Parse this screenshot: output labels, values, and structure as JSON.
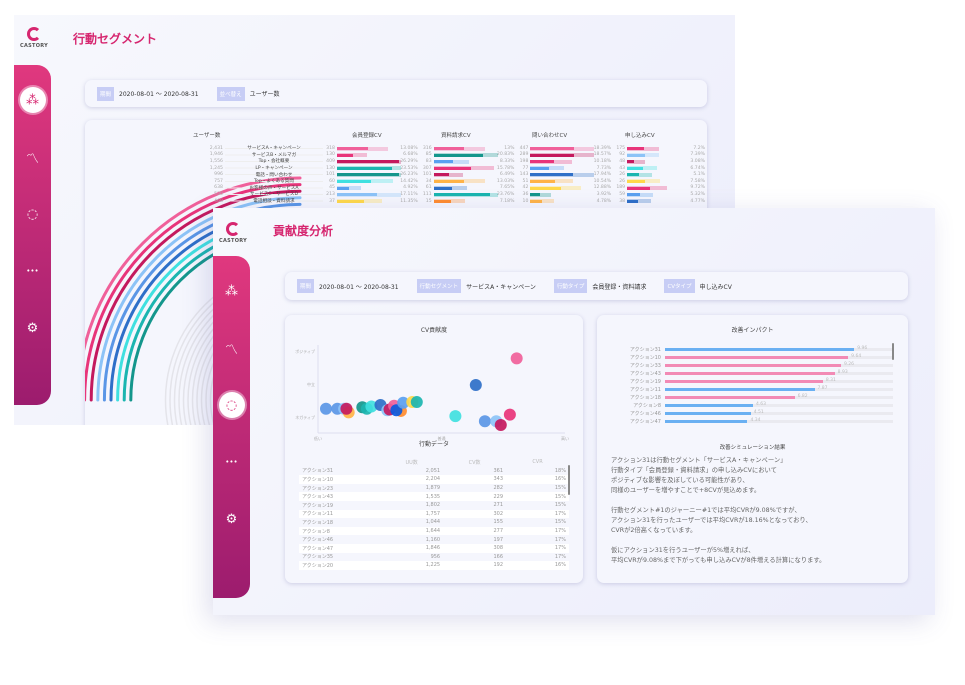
{
  "back": {
    "logo": "CASTORY",
    "title": "行動セグメント",
    "filters": [
      {
        "tag": "期間",
        "value": "2020-08-01 〜 2020-08-31"
      },
      {
        "tag": "並べ替え",
        "value": "ユーザー数"
      }
    ],
    "headers": {
      "users": "ユーザー数",
      "cv": [
        "会員登録CV",
        "資料請求CV",
        "問い合わせCV",
        "申し込みCV"
      ]
    },
    "rows": [
      {
        "name": "サービスA・キャンペーン",
        "users": "2,431",
        "color": "#f0609a",
        "cv": [
          {
            "n": "318",
            "p": "13.08%",
            "v": 13.08,
            "c": "#f0609a"
          },
          {
            "n": "316",
            "p": "13%",
            "v": 13,
            "c": "#f0609a"
          },
          {
            "n": "447",
            "p": "18.39%",
            "v": 18.39,
            "c": "#f0609a"
          },
          {
            "n": "175",
            "p": "7.2%",
            "v": 7.2,
            "c": "#e8347a"
          }
        ]
      },
      {
        "name": "サービスB・メルマガ",
        "users": "1,946",
        "color": "#e8347a",
        "cv": [
          {
            "n": "130",
            "p": "6.68%",
            "v": 6.68,
            "c": "#e8347a"
          },
          {
            "n": "85",
            "p": "20.83%",
            "v": 20.83,
            "c": "#14968c"
          },
          {
            "n": "289",
            "p": "18.57%",
            "v": 18.57,
            "c": "#c4195e"
          },
          {
            "n": "92",
            "p": "7.39%",
            "v": 7.39,
            "c": "#8cc3f7"
          }
        ]
      },
      {
        "name": "Top・会社概要",
        "users": "1,556",
        "color": "#c4195e",
        "cv": [
          {
            "n": "409",
            "p": "26.29%",
            "v": 26.29,
            "c": "#c4195e"
          },
          {
            "n": "83",
            "p": "8.33%",
            "v": 8.33,
            "c": "#5aa0f0"
          },
          {
            "n": "198",
            "p": "10.18%",
            "v": 10.18,
            "c": "#e8347a"
          },
          {
            "n": "48",
            "p": "3.08%",
            "v": 3.08,
            "c": "#c4195e"
          }
        ]
      },
      {
        "name": "LP・キャンペーン",
        "users": "1,245",
        "color": "#8cc3f7",
        "cv": [
          {
            "n": "130",
            "p": "23.53%",
            "v": 23.53,
            "c": "#1bb5b0"
          },
          {
            "n": "307",
            "p": "15.78%",
            "v": 15.78,
            "c": "#e8347a"
          },
          {
            "n": "77",
            "p": "7.73%",
            "v": 7.73,
            "c": "#5aa0f0"
          },
          {
            "n": "43",
            "p": "6.74%",
            "v": 6.74,
            "c": "#40e0e0"
          }
        ]
      },
      {
        "name": "電話・問い合わせ",
        "users": "996",
        "color": "#5a96e6",
        "cv": [
          {
            "n": "101",
            "p": "26.23%",
            "v": 26.23,
            "c": "#14968c"
          },
          {
            "n": "101",
            "p": "6.49%",
            "v": 6.49,
            "c": "#c4195e"
          },
          {
            "n": "143",
            "p": "17.94%",
            "v": 17.94,
            "c": "#2e6fc8"
          },
          {
            "n": "26",
            "p": "5.1%",
            "v": 5.1,
            "c": "#1bb5b0"
          }
        ]
      },
      {
        "name": "Top・よくある質問",
        "users": "757",
        "color": "#2e6fc8",
        "cv": [
          {
            "n": "60",
            "p": "14.42%",
            "v": 14.42,
            "c": "#40e0e0"
          },
          {
            "n": "34",
            "p": "13.03%",
            "v": 13.03,
            "c": "#ffb347"
          },
          {
            "n": "51",
            "p": "10.54%",
            "v": 10.54,
            "c": "#ffb347"
          },
          {
            "n": "26",
            "p": "7.58%",
            "v": 7.58,
            "c": "#ffd84a"
          }
        ]
      },
      {
        "name": "お客様の声・サービスA",
        "users": "638",
        "color": "#40e0e0",
        "cv": [
          {
            "n": "45",
            "p": "4.92%",
            "v": 4.92,
            "c": "#5aa0f0"
          },
          {
            "n": "61",
            "p": "7.65%",
            "v": 7.65,
            "c": "#2e6fc8"
          },
          {
            "n": "42",
            "p": "12.88%",
            "v": 12.88,
            "c": "#ffd84a"
          },
          {
            "n": "189",
            "p": "9.72%",
            "v": 9.72,
            "c": "#e8347a"
          }
        ]
      },
      {
        "name": "サービスC・サービスD",
        "users": "530",
        "color": "#1bb5b0",
        "cv": [
          {
            "n": "213",
            "p": "17.11%",
            "v": 17.11,
            "c": "#8cc3f7"
          },
          {
            "n": "111",
            "p": "23.76%",
            "v": 23.76,
            "c": "#1bb5b0"
          },
          {
            "n": "36",
            "p": "3.92%",
            "v": 3.92,
            "c": "#14968c"
          },
          {
            "n": "59",
            "p": "5.32%",
            "v": 5.32,
            "c": "#5aa0f0"
          }
        ]
      },
      {
        "name": "電話相談・資料請求",
        "users": "468",
        "color": "#14968c",
        "cv": [
          {
            "n": "37",
            "p": "11.35%",
            "v": 11.35,
            "c": "#ffd84a"
          },
          {
            "n": "15",
            "p": "7.18%",
            "v": 7.18,
            "c": "#ff8c30"
          },
          {
            "n": "10",
            "p": "4.78%",
            "v": 4.78,
            "c": "#ffb347"
          },
          {
            "n": "38",
            "p": "4.77%",
            "v": 4.77,
            "c": "#2e6fc8"
          }
        ]
      }
    ]
  },
  "front": {
    "logo": "CASTORY",
    "title": "貢献度分析",
    "filters": [
      {
        "tag": "期間",
        "value": "2020-08-01 〜 2020-08-31"
      },
      {
        "tag": "行動セグメント",
        "value": "サービスA・キャンペーン"
      },
      {
        "tag": "行動タイプ",
        "value": "会員登録・資料請求"
      },
      {
        "tag": "CVタイプ",
        "value": "申し込みCV"
      }
    ],
    "sidebar_active": 2,
    "chart_data": {
      "type": "scatter",
      "title": "CV貢献度",
      "yticks": [
        "ポジティブ",
        "中立",
        "ネガティブ"
      ],
      "xticks": [
        "低い",
        "普通",
        "高い"
      ],
      "xlim": [
        0,
        100
      ],
      "ylim": [
        0,
        100
      ],
      "points": [
        {
          "x": 0,
          "y": 22,
          "c": "#5a96e6"
        },
        {
          "x": 5,
          "y": 22,
          "c": "#5a96e6"
        },
        {
          "x": 8,
          "y": 22,
          "c": "#8cc3f7"
        },
        {
          "x": 10,
          "y": 17,
          "c": "#ffb347"
        },
        {
          "x": 9,
          "y": 22,
          "c": "#c4195e"
        },
        {
          "x": 16,
          "y": 24,
          "c": "#14968c"
        },
        {
          "x": 18,
          "y": 22,
          "c": "#1bb5b0"
        },
        {
          "x": 20,
          "y": 25,
          "c": "#40e0e0"
        },
        {
          "x": 24,
          "y": 27,
          "c": "#2e6fc8"
        },
        {
          "x": 27,
          "y": 20,
          "c": "#8cc3f7"
        },
        {
          "x": 28,
          "y": 21,
          "c": "#c4195e"
        },
        {
          "x": 30,
          "y": 26,
          "c": "#f0609a"
        },
        {
          "x": 33,
          "y": 19,
          "c": "#ff8c30"
        },
        {
          "x": 31,
          "y": 20,
          "c": "#0a5ae0"
        },
        {
          "x": 34,
          "y": 30,
          "c": "#5aa0f0"
        },
        {
          "x": 38,
          "y": 31,
          "c": "#ffd84a"
        },
        {
          "x": 40,
          "y": 31,
          "c": "#1bb5b0"
        },
        {
          "x": 57,
          "y": 12,
          "c": "#40e0e0"
        },
        {
          "x": 66,
          "y": 54,
          "c": "#2e6fc8"
        },
        {
          "x": 70,
          "y": 5,
          "c": "#5a96e6"
        },
        {
          "x": 75,
          "y": 5,
          "c": "#8cc3f7"
        },
        {
          "x": 77,
          "y": 0,
          "c": "#c4195e"
        },
        {
          "x": 81,
          "y": 14,
          "c": "#e8347a"
        },
        {
          "x": 84,
          "y": 90,
          "c": "#f0609a"
        }
      ]
    },
    "table": {
      "title": "行動データ",
      "headers": [
        "",
        "UU数",
        "CV数",
        "CVR"
      ],
      "rows": [
        [
          "アクション31",
          "2,051",
          "361",
          "18%"
        ],
        [
          "アクション10",
          "2,204",
          "343",
          "16%"
        ],
        [
          "アクション23",
          "1,879",
          "282",
          "15%"
        ],
        [
          "アクション43",
          "1,535",
          "229",
          "15%"
        ],
        [
          "アクション19",
          "1,802",
          "271",
          "15%"
        ],
        [
          "アクション11",
          "1,757",
          "302",
          "17%"
        ],
        [
          "アクション18",
          "1,044",
          "155",
          "15%"
        ],
        [
          "アクション8",
          "1,644",
          "277",
          "17%"
        ],
        [
          "アクション46",
          "1,160",
          "197",
          "17%"
        ],
        [
          "アクション47",
          "1,846",
          "308",
          "17%"
        ],
        [
          "アクション35",
          "956",
          "166",
          "17%"
        ],
        [
          "アクション20",
          "1,225",
          "192",
          "16%"
        ]
      ]
    },
    "impact": {
      "title": "改善インパクト",
      "max": 12,
      "rows": [
        {
          "label": "アクション31",
          "value": "9.96",
          "v": 9.96,
          "c": "#6ab0f2"
        },
        {
          "label": "アクション10",
          "value": "9.64",
          "v": 9.64,
          "c": "#f28ab5"
        },
        {
          "label": "アクション33",
          "value": "9.26",
          "v": 9.26,
          "c": "#f28ab5"
        },
        {
          "label": "アクション43",
          "value": "8.93",
          "v": 8.93,
          "c": "#f28ab5"
        },
        {
          "label": "アクション19",
          "value": "8.31",
          "v": 8.31,
          "c": "#f28ab5"
        },
        {
          "label": "アクション11",
          "value": "7.87",
          "v": 7.87,
          "c": "#6ab0f2"
        },
        {
          "label": "アクション18",
          "value": "6.82",
          "v": 6.82,
          "c": "#f28ab5"
        },
        {
          "label": "アクション8",
          "value": "4.63",
          "v": 4.63,
          "c": "#6ab0f2"
        },
        {
          "label": "アクション46",
          "value": "4.51",
          "v": 4.51,
          "c": "#6ab0f2"
        },
        {
          "label": "アクション47",
          "value": "4.34",
          "v": 4.34,
          "c": "#6ab0f2"
        }
      ]
    },
    "simulation": {
      "title": "改善シミュレーション結果",
      "paragraphs": [
        [
          "アクション31は行動セグメント「サービスA・キャンペーン」",
          "行動タイプ「会員登録・資料請求」の申し込みCVにおいて",
          "ポジティブな影響を及ぼしている可能性があり、",
          "同様のユーザーを増やすことで+8CVが見込めます。"
        ],
        [
          "行動セグメント#1のジャーニー#1では平均CVRが9.08%ですが、",
          "アクション31を行ったユーザーでは平均CVRが18.16%となっており、",
          "CVRが2倍高くなっています。"
        ],
        [
          "仮にアクション31を行うユーザーが5%増えれば、",
          "平均CVRが9.08%まで下がっても申し込みCVが8件増える計算になります。"
        ]
      ]
    }
  },
  "sidebar_icons": [
    "network-icon",
    "chart-line-icon",
    "cycle-icon",
    "more-icon",
    "gear-icon"
  ]
}
